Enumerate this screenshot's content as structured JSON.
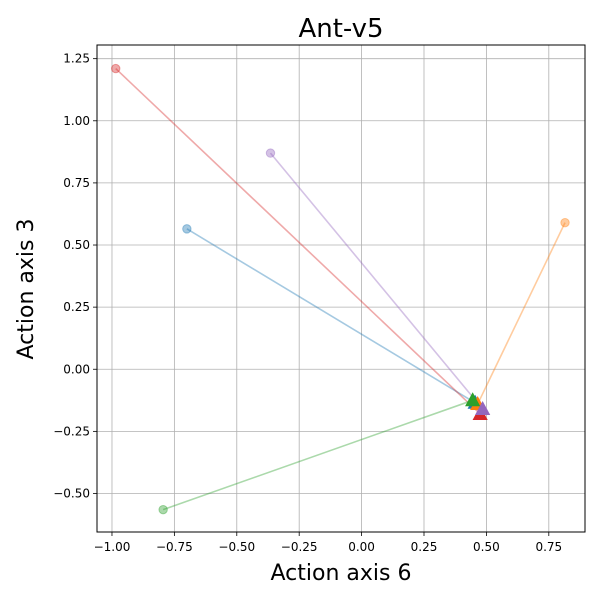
{
  "chart_data": {
    "type": "scatter",
    "title": "Ant-v5",
    "xlabel": "Action axis 6",
    "ylabel": "Action axis 3",
    "xlim": [
      -1.06,
      0.895
    ],
    "ylim": [
      -0.655,
      1.305
    ],
    "xticks": [
      -1.0,
      -0.75,
      -0.5,
      -0.25,
      0.0,
      0.25,
      0.5,
      0.75
    ],
    "xtick_labels": [
      "−1.00",
      "−0.75",
      "−0.50",
      "−0.25",
      "0.00",
      "0.25",
      "0.50",
      "0.75"
    ],
    "yticks": [
      -0.5,
      -0.25,
      0.0,
      0.25,
      0.5,
      0.75,
      1.0,
      1.25
    ],
    "ytick_labels": [
      "−0.50",
      "−0.25",
      "0.00",
      "0.25",
      "0.50",
      "0.75",
      "1.00",
      "1.25"
    ],
    "grid": true,
    "marker_start": "circle",
    "marker_end": "triangle",
    "series": [
      {
        "color": "#1f77b4",
        "start": [
          -0.7,
          0.565
        ],
        "end": [
          0.455,
          -0.135
        ]
      },
      {
        "color": "#ff7f0e",
        "start": [
          0.815,
          0.59
        ],
        "end": [
          0.465,
          -0.14
        ]
      },
      {
        "color": "#d62728",
        "start": [
          -0.985,
          1.21
        ],
        "end": [
          0.475,
          -0.18
        ]
      },
      {
        "color": "#9467bd",
        "start": [
          -0.365,
          0.87
        ],
        "end": [
          0.485,
          -0.16
        ]
      },
      {
        "color": "#2ca02c",
        "start": [
          -0.795,
          -0.565
        ],
        "end": [
          0.445,
          -0.125
        ]
      }
    ]
  }
}
